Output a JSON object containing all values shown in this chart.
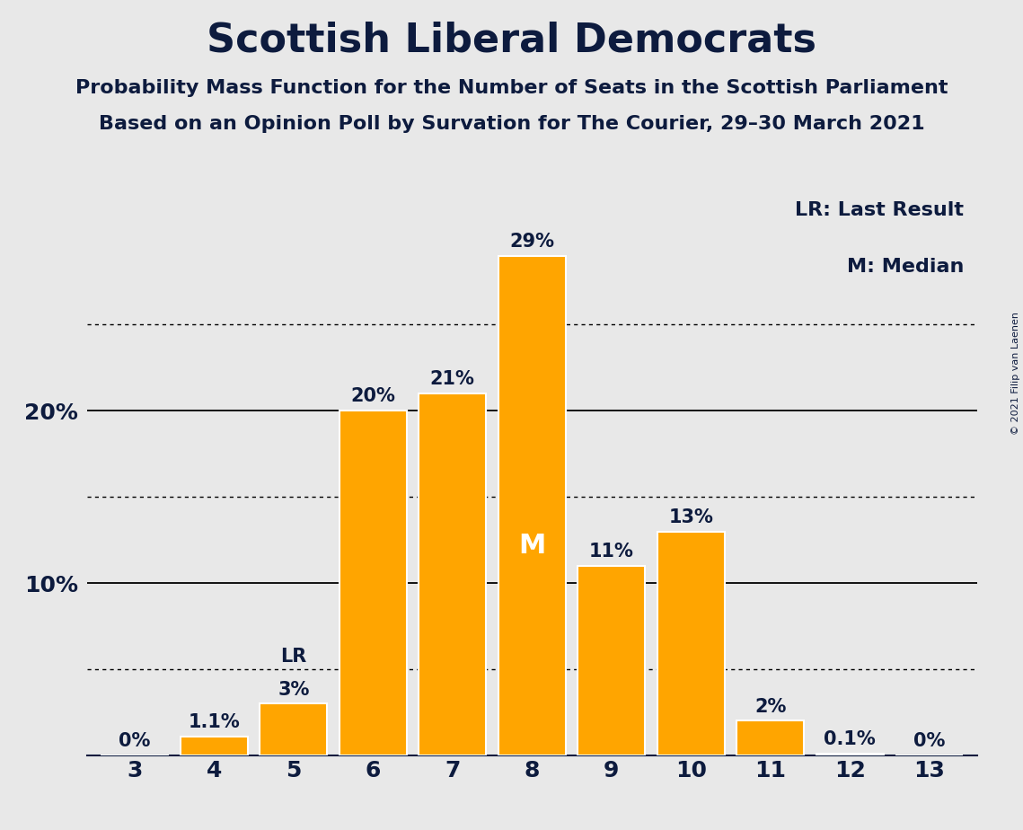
{
  "title": "Scottish Liberal Democrats",
  "subtitle1": "Probability Mass Function for the Number of Seats in the Scottish Parliament",
  "subtitle2": "Based on an Opinion Poll by Survation for The Courier, 29–30 March 2021",
  "copyright": "© 2021 Filip van Laenen",
  "categories": [
    3,
    4,
    5,
    6,
    7,
    8,
    9,
    10,
    11,
    12,
    13
  ],
  "values": [
    0.0,
    1.1,
    3.0,
    20.0,
    21.0,
    29.0,
    11.0,
    13.0,
    2.0,
    0.1,
    0.0
  ],
  "labels": [
    "0%",
    "1.1%",
    "3%",
    "20%",
    "21%",
    "29%",
    "11%",
    "13%",
    "2%",
    "0.1%",
    "0%"
  ],
  "bar_color": "#FFA500",
  "background_color": "#E8E8E8",
  "text_color": "#0D1B3E",
  "bar_edge_color": "#FFFFFF",
  "lr_bar_index": 2,
  "median_bar_index": 5,
  "dotted_gridlines": [
    5.0,
    15.0,
    25.0
  ],
  "solid_gridlines": [
    10.0,
    20.0
  ],
  "ylim": [
    0,
    33
  ],
  "legend_text1": "LR: Last Result",
  "legend_text2": "M: Median",
  "title_fontsize": 32,
  "subtitle_fontsize": 16,
  "label_fontsize": 15,
  "tick_fontsize": 18,
  "legend_fontsize": 16
}
